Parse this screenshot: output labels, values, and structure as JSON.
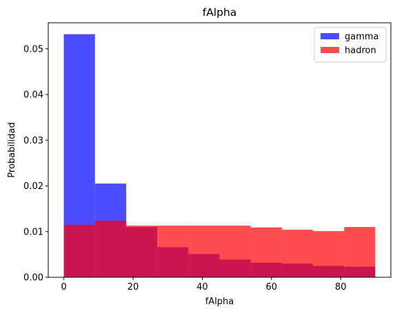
{
  "chart_data": {
    "type": "bar",
    "title": "fAlpha",
    "xlabel": "fAlpha",
    "ylabel": "Probabilidad",
    "xlim": [
      -4.5,
      94.5
    ],
    "ylim": [
      0,
      0.0557
    ],
    "x_ticks": [
      0,
      20,
      40,
      60,
      80
    ],
    "x_tick_labels": [
      "0",
      "20",
      "40",
      "60",
      "80"
    ],
    "y_ticks": [
      0.0,
      0.01,
      0.02,
      0.03,
      0.04,
      0.05
    ],
    "y_tick_labels": [
      "0.00",
      "0.01",
      "0.02",
      "0.03",
      "0.04",
      "0.05"
    ],
    "bin_edges": [
      0,
      9,
      18,
      27,
      36,
      45,
      54,
      63,
      72,
      81,
      90
    ],
    "grid": false,
    "legend_position": "top-right",
    "series": [
      {
        "name": "gamma",
        "color": "#0000ff",
        "alpha": 0.7,
        "values": [
          0.0532,
          0.0205,
          0.011,
          0.0066,
          0.0051,
          0.0039,
          0.0032,
          0.003,
          0.0025,
          0.0023
        ]
      },
      {
        "name": "hadron",
        "color": "#ff0000",
        "alpha": 0.7,
        "values": [
          0.0115,
          0.0124,
          0.0113,
          0.0113,
          0.0113,
          0.0113,
          0.0109,
          0.0104,
          0.0101,
          0.011
        ]
      }
    ]
  }
}
